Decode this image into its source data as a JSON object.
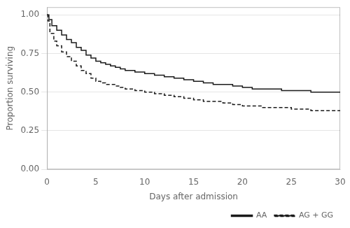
{
  "chart_data": {
    "type": "line",
    "xlabel": "Days after admission",
    "ylabel": "Proportion surviving",
    "xlim": [
      0,
      30
    ],
    "ylim": [
      0,
      1.05
    ],
    "xticks": [
      0,
      5,
      10,
      15,
      20,
      25,
      30
    ],
    "yticks": [
      {
        "value": 0.0,
        "label": "0.00"
      },
      0.25,
      {
        "value": 0.5,
        "label": "0.50"
      },
      0.75,
      {
        "value": 1.0,
        "label": "1.00"
      }
    ],
    "grid": "y",
    "legend": "lower right",
    "series": [
      {
        "name": "AA",
        "color": "#1a1a1a",
        "line_style": "solid",
        "x": [
          0,
          0.2,
          0.2,
          0.5,
          0.5,
          1.0,
          1.0,
          1.5,
          1.5,
          2.0,
          2.0,
          2.5,
          2.5,
          3.0,
          3.0,
          3.5,
          3.5,
          4.0,
          4.0,
          4.5,
          4.5,
          5.0,
          5.0,
          5.5,
          5.5,
          6.0,
          6.0,
          6.5,
          6.5,
          7.0,
          7.0,
          7.5,
          7.5,
          8.0,
          8.0,
          9.0,
          9.0,
          10.0,
          10.0,
          11.0,
          11.0,
          12.0,
          12.0,
          13.0,
          13.0,
          14.0,
          14.0,
          15.0,
          15.0,
          16.0,
          16.0,
          17.0,
          17.0,
          18.0,
          18.0,
          19.0,
          19.0,
          20.0,
          20.0,
          21.0,
          21.0,
          22.0,
          22.0,
          23.0,
          23.0,
          24.0,
          24.0,
          25.0,
          25.0,
          26.0,
          26.0,
          27.0,
          27.0,
          28.0,
          28.0,
          29.0,
          29.0,
          30.0
        ],
        "values": [
          1.0,
          1.0,
          0.97,
          0.97,
          0.93,
          0.93,
          0.9,
          0.9,
          0.87,
          0.87,
          0.84,
          0.84,
          0.82,
          0.82,
          0.79,
          0.79,
          0.77,
          0.77,
          0.74,
          0.74,
          0.72,
          0.72,
          0.7,
          0.7,
          0.69,
          0.69,
          0.68,
          0.68,
          0.67,
          0.67,
          0.66,
          0.66,
          0.65,
          0.65,
          0.64,
          0.64,
          0.63,
          0.63,
          0.62,
          0.62,
          0.61,
          0.61,
          0.6,
          0.6,
          0.59,
          0.59,
          0.58,
          0.58,
          0.57,
          0.57,
          0.56,
          0.56,
          0.55,
          0.55,
          0.55,
          0.55,
          0.54,
          0.54,
          0.53,
          0.53,
          0.52,
          0.52,
          0.52,
          0.52,
          0.52,
          0.52,
          0.51,
          0.51,
          0.51,
          0.51,
          0.51,
          0.51,
          0.5,
          0.5,
          0.5,
          0.5,
          0.5,
          0.5
        ]
      },
      {
        "name": "AG + GG",
        "color": "#1a1a1a",
        "line_style": "dashed",
        "x": [
          0,
          0.1,
          0.1,
          0.3,
          0.3,
          0.7,
          0.7,
          1.0,
          1.0,
          1.5,
          1.5,
          2.0,
          2.0,
          2.5,
          2.5,
          3.0,
          3.0,
          3.5,
          3.5,
          4.0,
          4.0,
          4.5,
          4.5,
          5.0,
          5.0,
          5.5,
          5.5,
          6.0,
          6.0,
          6.5,
          6.5,
          7.0,
          7.0,
          7.5,
          7.5,
          8.0,
          8.0,
          9.0,
          9.0,
          10.0,
          10.0,
          11.0,
          11.0,
          12.0,
          12.0,
          13.0,
          13.0,
          14.0,
          14.0,
          15.0,
          15.0,
          16.0,
          16.0,
          17.0,
          17.0,
          18.0,
          18.0,
          19.0,
          19.0,
          20.0,
          20.0,
          21.0,
          21.0,
          22.0,
          22.0,
          23.0,
          23.0,
          24.0,
          24.0,
          25.0,
          25.0,
          26.0,
          26.0,
          27.0,
          27.0,
          28.0,
          28.0,
          29.0,
          29.0,
          30.0
        ],
        "values": [
          1.0,
          1.0,
          0.96,
          0.96,
          0.88,
          0.88,
          0.83,
          0.83,
          0.8,
          0.8,
          0.76,
          0.76,
          0.73,
          0.73,
          0.7,
          0.7,
          0.67,
          0.67,
          0.64,
          0.64,
          0.62,
          0.62,
          0.59,
          0.59,
          0.57,
          0.57,
          0.56,
          0.56,
          0.55,
          0.55,
          0.55,
          0.55,
          0.54,
          0.54,
          0.53,
          0.53,
          0.52,
          0.52,
          0.51,
          0.51,
          0.5,
          0.5,
          0.49,
          0.49,
          0.48,
          0.48,
          0.47,
          0.47,
          0.46,
          0.46,
          0.45,
          0.45,
          0.44,
          0.44,
          0.44,
          0.44,
          0.43,
          0.43,
          0.42,
          0.42,
          0.41,
          0.41,
          0.41,
          0.41,
          0.4,
          0.4,
          0.4,
          0.4,
          0.4,
          0.4,
          0.39,
          0.39,
          0.39,
          0.39,
          0.38,
          0.38,
          0.38,
          0.38,
          0.38,
          0.38
        ]
      }
    ]
  }
}
